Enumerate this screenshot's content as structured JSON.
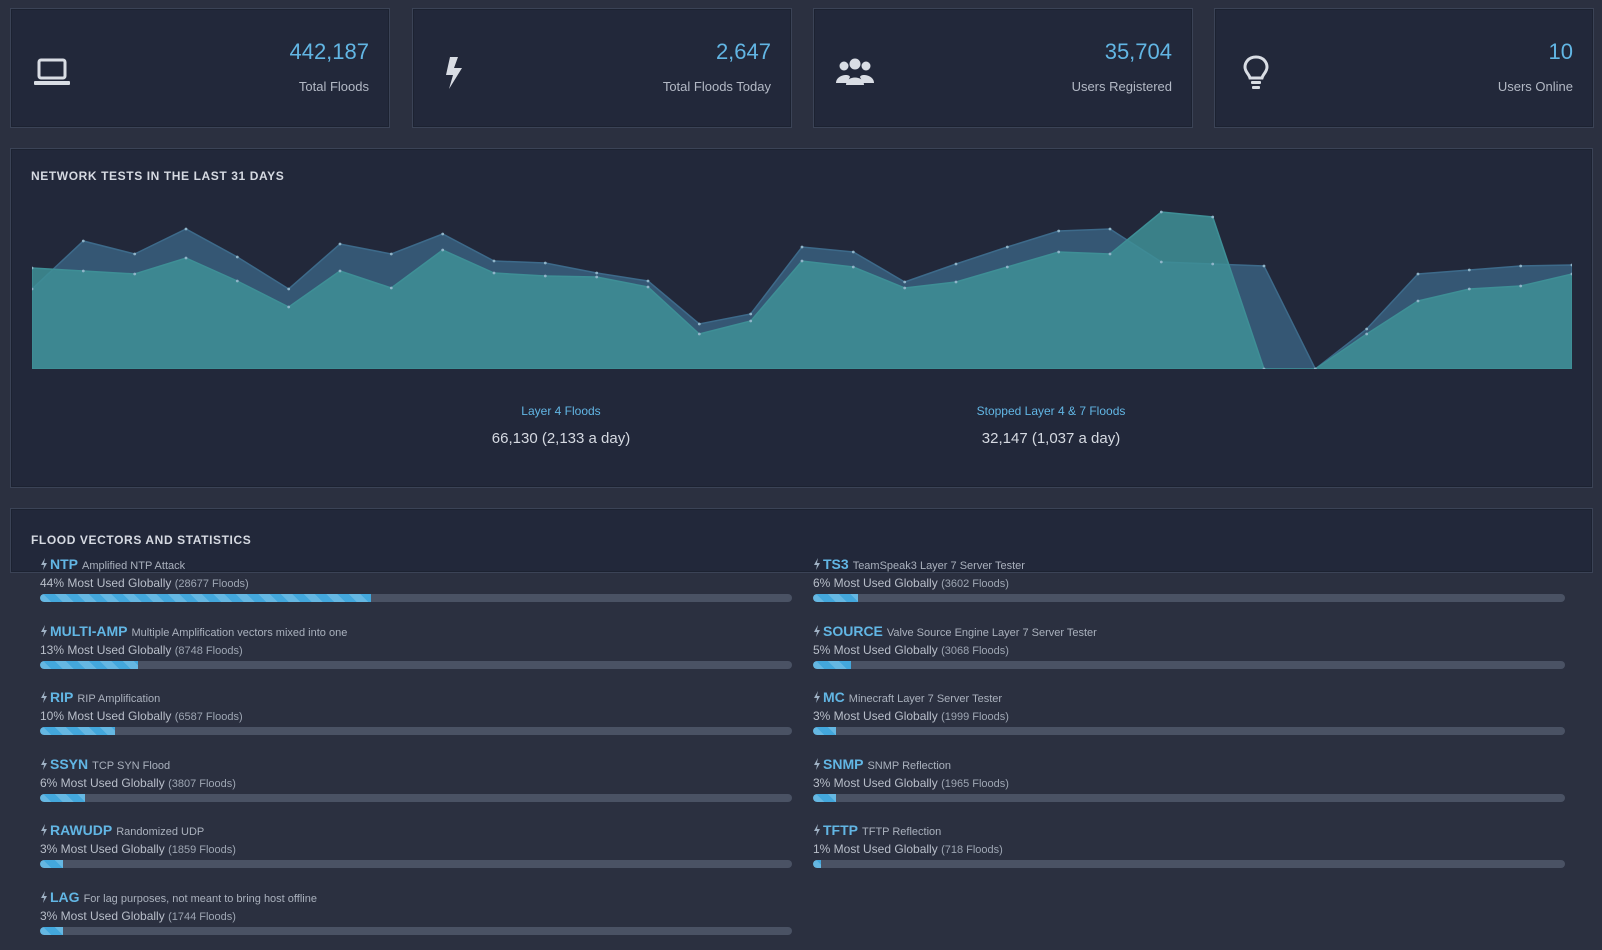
{
  "stats": [
    {
      "icon": "laptop-icon",
      "value": "442,187",
      "label": "Total Floods"
    },
    {
      "icon": "bolt-icon",
      "value": "2,647",
      "label": "Total Floods Today"
    },
    {
      "icon": "users-icon",
      "value": "35,704",
      "label": "Users Registered"
    },
    {
      "icon": "lightbulb-icon",
      "value": "10",
      "label": "Users Online"
    }
  ],
  "chart": {
    "title": "NETWORK TESTS IN THE LAST 31 DAYS",
    "legend": [
      {
        "name": "Layer 4 Floods",
        "value": "66,130 (2,133 a day)"
      },
      {
        "name": "Stopped Layer 4 & 7 Floods",
        "value": "32,147 (1,037 a day)"
      }
    ]
  },
  "chart_data": {
    "type": "area",
    "title": "NETWORK TESTS IN THE LAST 31 DAYS",
    "x": [
      1,
      2,
      3,
      4,
      5,
      6,
      7,
      8,
      9,
      10,
      11,
      12,
      13,
      14,
      15,
      16,
      17,
      18,
      19,
      20,
      21,
      22,
      23,
      24,
      25,
      26,
      27,
      28,
      29,
      30,
      31
    ],
    "ylim": [
      0,
      160
    ],
    "grid": false,
    "legend_position": "bottom",
    "series": [
      {
        "name": "Layer 4 Floods",
        "color": "#3d6a8a",
        "values": [
          80,
          128,
          115,
          140,
          112,
          80,
          125,
          115,
          135,
          108,
          106,
          96,
          88,
          45,
          55,
          122,
          117,
          87,
          105,
          122,
          138,
          140,
          107,
          105,
          103,
          0,
          40,
          95,
          99,
          103,
          104
        ]
      },
      {
        "name": "Stopped Layer 4 & 7 Floods",
        "color": "#3e8f96",
        "values": [
          101,
          98,
          95,
          111,
          88,
          62,
          98,
          81,
          119,
          96,
          93,
          92,
          82,
          35,
          48,
          108,
          102,
          81,
          87,
          102,
          117,
          115,
          157,
          152,
          0,
          0,
          35,
          68,
          80,
          83,
          95
        ]
      }
    ]
  },
  "vectors": {
    "title": "FLOOD VECTORS AND STATISTICS",
    "items": [
      {
        "name": "NTP",
        "desc": "Amplified NTP Attack",
        "percent": 44,
        "pct_label": "44% Most Used Globally",
        "count_label": "(28677 Floods)"
      },
      {
        "name": "MULTI-AMP",
        "desc": "Multiple Amplification vectors mixed into one",
        "percent": 13,
        "pct_label": "13% Most Used Globally",
        "count_label": "(8748 Floods)"
      },
      {
        "name": "RIP",
        "desc": "RIP Amplification",
        "percent": 10,
        "pct_label": "10% Most Used Globally",
        "count_label": "(6587 Floods)"
      },
      {
        "name": "SSYN",
        "desc": "TCP SYN Flood",
        "percent": 6,
        "pct_label": "6% Most Used Globally",
        "count_label": "(3807 Floods)"
      },
      {
        "name": "RAWUDP",
        "desc": "Randomized UDP",
        "percent": 3,
        "pct_label": "3% Most Used Globally",
        "count_label": "(1859 Floods)"
      },
      {
        "name": "LAG",
        "desc": "For lag purposes, not meant to bring host offline",
        "percent": 3,
        "pct_label": "3% Most Used Globally",
        "count_label": "(1744 Floods)"
      },
      {
        "name": "TS3",
        "desc": "TeamSpeak3 Layer 7 Server Tester",
        "percent": 6,
        "pct_label": "6% Most Used Globally",
        "count_label": "(3602 Floods)"
      },
      {
        "name": "SOURCE",
        "desc": "Valve Source Engine Layer 7 Server Tester",
        "percent": 5,
        "pct_label": "5% Most Used Globally",
        "count_label": "(3068 Floods)"
      },
      {
        "name": "MC",
        "desc": "Minecraft Layer 7 Server Tester",
        "percent": 3,
        "pct_label": "3% Most Used Globally",
        "count_label": "(1999 Floods)"
      },
      {
        "name": "SNMP",
        "desc": "SNMP Reflection",
        "percent": 3,
        "pct_label": "3% Most Used Globally",
        "count_label": "(1965 Floods)"
      },
      {
        "name": "TFTP",
        "desc": "TFTP Reflection",
        "percent": 1,
        "pct_label": "1% Most Used Globally",
        "count_label": "(718 Floods)"
      }
    ]
  }
}
